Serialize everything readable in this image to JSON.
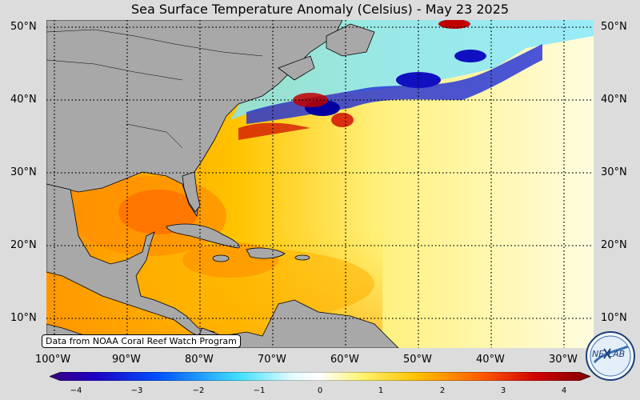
{
  "title": "Sea Surface Temperature Anomaly (Celsius) - May 23 2025",
  "credit": "Data from NOAA Coral Reef Watch Program",
  "lat_labels": [
    "50°N",
    "40°N",
    "30°N",
    "20°N",
    "10°N"
  ],
  "lon_labels": [
    "100°W",
    "90°W",
    "80°W",
    "70°W",
    "60°W",
    "50°W",
    "40°W",
    "30°W"
  ],
  "colorbar": {
    "ticks": [
      "−4",
      "−3",
      "−2",
      "−1",
      "0",
      "1",
      "2",
      "3",
      "4"
    ],
    "range": [
      -4,
      4
    ]
  },
  "logo": {
    "text_left": "NE",
    "text_right": "LAB",
    "icon": "nexlab-logo"
  },
  "colors": {
    "land": "#a8a8a8",
    "warm": "#ffa200",
    "hot": "#e00000",
    "cold": "#0000c8",
    "cool": "#40d0ff"
  }
}
